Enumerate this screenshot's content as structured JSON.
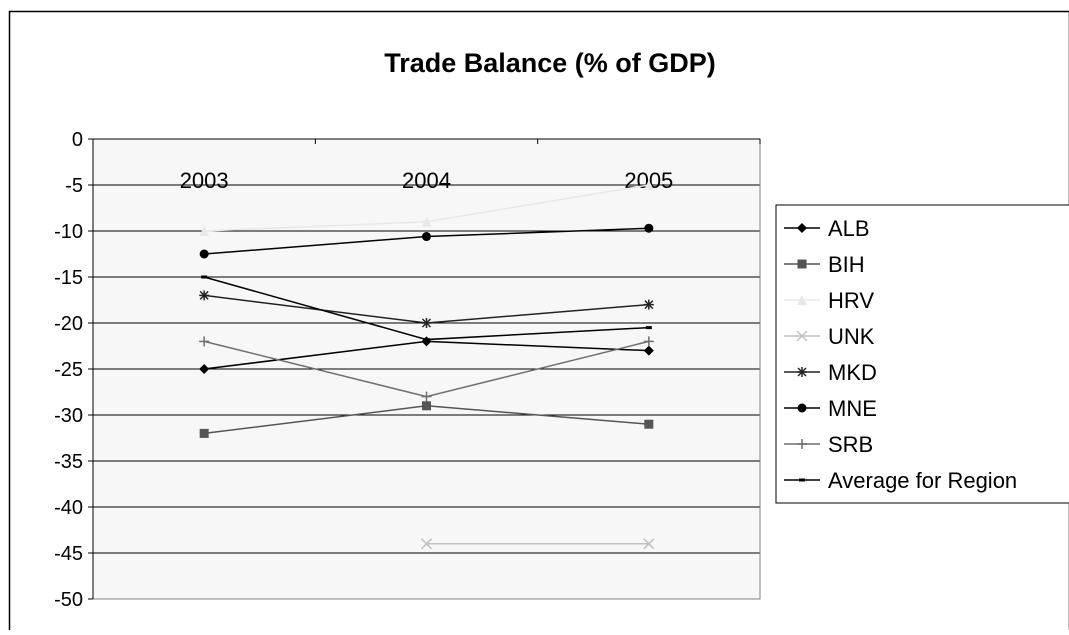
{
  "chart_data": {
    "type": "line",
    "title": "Trade Balance (% of GDP)",
    "xlabel": "",
    "ylabel": "",
    "categories": [
      "2003",
      "2004",
      "2005"
    ],
    "ylim": [
      -50,
      0
    ],
    "yticks": [
      0,
      -5,
      -10,
      -15,
      -20,
      -25,
      -30,
      -35,
      -40,
      -45,
      -50
    ],
    "ytick_labels": [
      "0",
      "-5",
      "-10",
      "-15",
      "-20",
      "-25",
      "-30",
      "-35",
      "-40",
      "-45",
      "-50"
    ],
    "x_axis_position": "top",
    "grid": true,
    "legend_position": "right",
    "series": [
      {
        "name": "ALB",
        "values": [
          -25,
          -22,
          -23
        ],
        "color": "#000000",
        "marker": "diamond"
      },
      {
        "name": "BIH",
        "values": [
          -32,
          -29,
          -31
        ],
        "color": "#555555",
        "marker": "square"
      },
      {
        "name": "HRV",
        "values": [
          -10,
          -9,
          -5
        ],
        "color": "#e8e8e8",
        "marker": "triangle"
      },
      {
        "name": "UNK",
        "values": [
          null,
          -44,
          -44
        ],
        "color": "#c0c0c0",
        "marker": "x"
      },
      {
        "name": "MKD",
        "values": [
          -17,
          -20,
          -18
        ],
        "color": "#222222",
        "marker": "asterisk"
      },
      {
        "name": "MNE",
        "values": [
          -12.5,
          -10.6,
          -9.7
        ],
        "color": "#000000",
        "marker": "circle"
      },
      {
        "name": "SRB",
        "values": [
          -22,
          -28,
          -22
        ],
        "color": "#6e6e6e",
        "marker": "plus"
      },
      {
        "name": "Average for Region",
        "values": [
          -15,
          -21.8,
          -20.5
        ],
        "color": "#000000",
        "marker": "dash"
      }
    ]
  }
}
